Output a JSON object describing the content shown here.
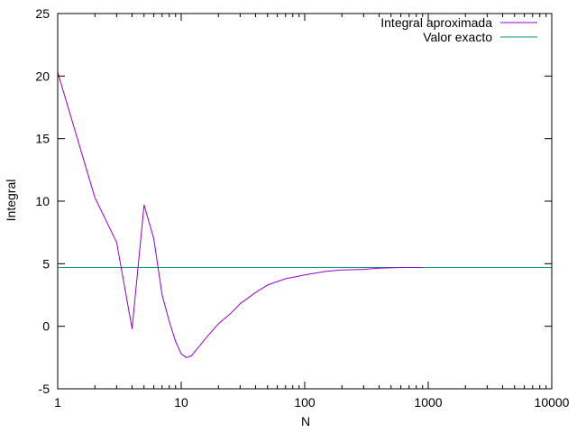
{
  "chart_data": {
    "type": "line",
    "title": "",
    "xlabel": "N",
    "ylabel": "Integral",
    "xscale": "log",
    "xlim": [
      1,
      10000
    ],
    "ylim": [
      -5,
      25
    ],
    "x_ticks": [
      1,
      10,
      100,
      1000,
      10000
    ],
    "x_tick_labels": [
      "1",
      "10",
      "100",
      "1000",
      "10000"
    ],
    "y_ticks": [
      -5,
      0,
      5,
      10,
      15,
      20,
      25
    ],
    "y_tick_labels": [
      "-5",
      "0",
      "5",
      "10",
      "15",
      "20",
      "25"
    ],
    "grid": false,
    "legend": "top-right",
    "series": [
      {
        "name": "Integral aproximada",
        "color": "#9400d3",
        "x": [
          1,
          2,
          3,
          4,
          5,
          6,
          7,
          8,
          9,
          10,
          11,
          12,
          14,
          16,
          20,
          25,
          30,
          40,
          50,
          70,
          100,
          150,
          200,
          300,
          400,
          600,
          900
        ],
        "y": [
          20.3,
          10.3,
          6.7,
          -0.2,
          9.7,
          7.0,
          2.5,
          0.4,
          -1.2,
          -2.2,
          -2.5,
          -2.4,
          -1.6,
          -0.9,
          0.2,
          1.0,
          1.8,
          2.7,
          3.3,
          3.8,
          4.1,
          4.4,
          4.5,
          4.55,
          4.65,
          4.7,
          4.7
        ]
      },
      {
        "name": "Valor exacto",
        "color": "#009e73",
        "x": [
          1,
          10000
        ],
        "y": [
          4.7,
          4.7
        ]
      }
    ]
  }
}
